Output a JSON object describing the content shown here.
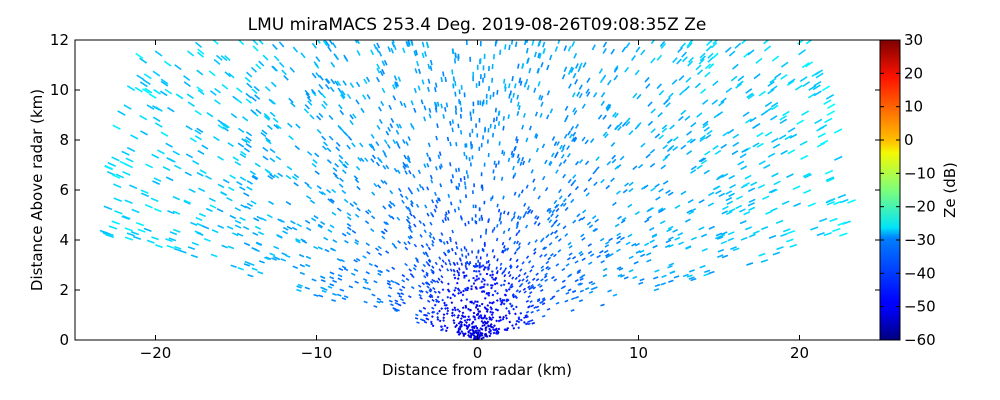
{
  "chart_data": {
    "type": "heatmap",
    "subtype": "radar-rhi-sector",
    "title": "LMU miraMACS 253.4 Deg. 2019-08-26T09:08:35Z  Ze",
    "xlabel": "Distance from radar (km)",
    "ylabel": "Distance Above radar  (km)",
    "xlim": [
      -25,
      25
    ],
    "ylim": [
      0,
      12
    ],
    "x_ticks": [
      -20,
      -10,
      0,
      10,
      20
    ],
    "x_tick_labels": [
      "−20",
      "−10",
      "0",
      "10",
      "20"
    ],
    "y_ticks": [
      0,
      2,
      4,
      6,
      8,
      10,
      12
    ],
    "y_tick_labels": [
      "0",
      "2",
      "4",
      "6",
      "8",
      "10",
      "12"
    ],
    "grid": false,
    "max_range_km": 24,
    "sector_elevation_deg": [
      10,
      170
    ],
    "radial_reflectivity_profile": [
      {
        "range_km": 0,
        "ze_db": -52
      },
      {
        "range_km": 2,
        "ze_db": -48
      },
      {
        "range_km": 4,
        "ze_db": -42
      },
      {
        "range_km": 7,
        "ze_db": -38
      },
      {
        "range_km": 10,
        "ze_db": -35
      },
      {
        "range_km": 14,
        "ze_db": -33
      },
      {
        "range_km": 18,
        "ze_db": -31
      },
      {
        "range_km": 24,
        "ze_db": -29
      }
    ],
    "colorbar": {
      "label": "Ze (dB)",
      "min": -60,
      "max": 30,
      "ticks": [
        30,
        20,
        10,
        0,
        -10,
        -20,
        -30,
        -40,
        -50,
        -60
      ],
      "tick_labels": [
        "30",
        "20",
        "10",
        "0",
        "−10",
        "−20",
        "−30",
        "−40",
        "−50",
        "−60"
      ],
      "colormap": "jet"
    }
  }
}
